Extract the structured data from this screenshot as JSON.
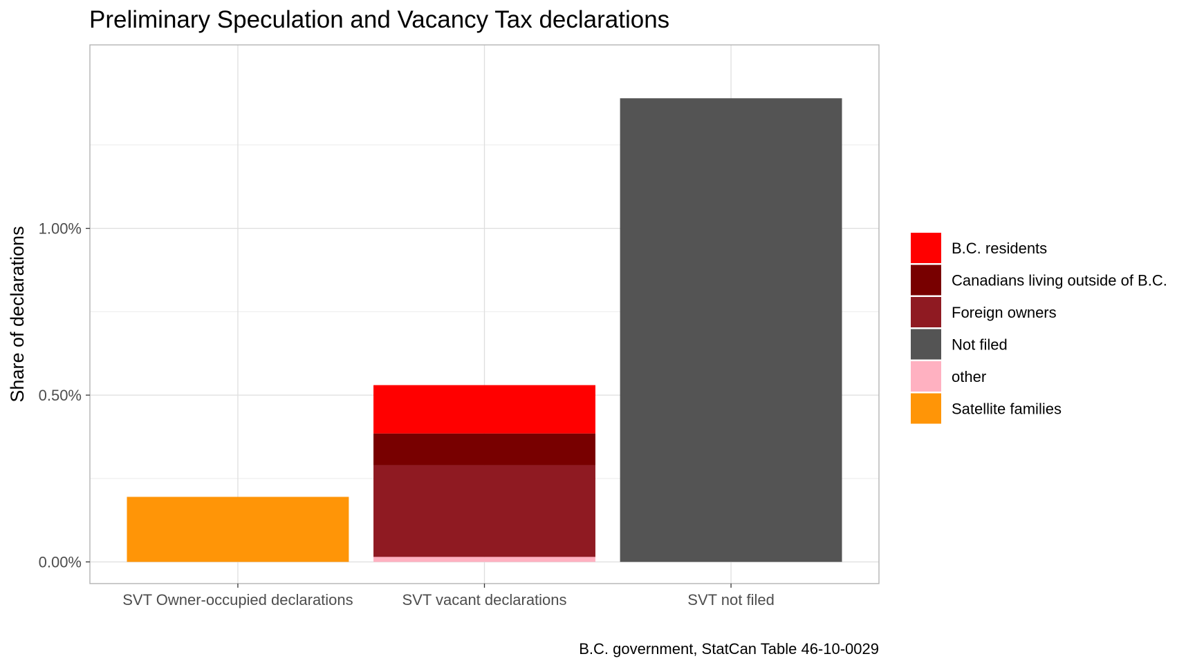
{
  "chart_data": {
    "type": "bar",
    "stacked": true,
    "title": "Preliminary Speculation and Vacancy Tax declarations",
    "ylabel": "Share of declarations",
    "xlabel": "",
    "caption": "B.C. government, StatCan Table 46-10-0029",
    "categories": [
      "SVT Owner-occupied declarations",
      "SVT vacant declarations",
      "SVT not filed"
    ],
    "ylim": [
      -0.065,
      1.55
    ],
    "y_ticks": [
      0.0,
      0.5,
      1.0
    ],
    "y_tick_labels": [
      "0.00%",
      "0.50%",
      "1.00%"
    ],
    "grid": true,
    "legend_position": "right",
    "series": [
      {
        "name": "B.C. residents",
        "color": "#FF0000",
        "values": [
          0,
          0.145,
          0
        ]
      },
      {
        "name": "Canadians living outside of B.C.",
        "color": "#780000",
        "values": [
          0,
          0.095,
          0
        ]
      },
      {
        "name": "Foreign owners",
        "color": "#8F1A22",
        "values": [
          0,
          0.275,
          0
        ]
      },
      {
        "name": "Not filed",
        "color": "#545454",
        "values": [
          0,
          0,
          1.39
        ]
      },
      {
        "name": "other",
        "color": "#FFB1C1",
        "values": [
          0,
          0.015,
          0
        ]
      },
      {
        "name": "Satellite families",
        "color": "#FF9507",
        "values": [
          0.195,
          0,
          0
        ]
      }
    ],
    "stack_order_bottom_to_top": [
      "Satellite families",
      "other",
      "Foreign owners",
      "Canadians living outside of B.C.",
      "B.C. residents",
      "Not filed"
    ]
  }
}
